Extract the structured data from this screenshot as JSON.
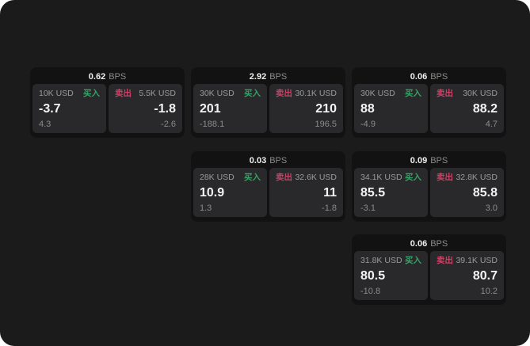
{
  "window": {
    "background": "#ffffff",
    "surface": "#1b1b1c"
  },
  "colors": {
    "card_bg": "#121213",
    "panel_bg": "#29292b",
    "buy_green": "#35a266",
    "sell_red": "#cb4266",
    "text_primary": "#f3f3f3",
    "text_secondary": "#9a9a9a"
  },
  "labels": {
    "buy": "买入",
    "sell": "卖出",
    "bps_unit": "BPS"
  },
  "cards": [
    {
      "bps": "0.62",
      "buy": {
        "amount": "10K USD",
        "value": "-3.7",
        "change": "4.3"
      },
      "sell": {
        "amount": "5.5K USD",
        "value": "-1.8",
        "change": "-2.6"
      }
    },
    {
      "bps": "2.92",
      "buy": {
        "amount": "30K USD",
        "value": "201",
        "change": "-188.1"
      },
      "sell": {
        "amount": "30.1K USD",
        "value": "210",
        "change": "196.5"
      }
    },
    {
      "bps": "0.06",
      "buy": {
        "amount": "30K USD",
        "value": "88",
        "change": "-4.9"
      },
      "sell": {
        "amount": "30K USD",
        "value": "88.2",
        "change": "4.7"
      }
    },
    {
      "bps": "0.03",
      "buy": {
        "amount": "28K USD",
        "value": "10.9",
        "change": "1.3"
      },
      "sell": {
        "amount": "32.6K USD",
        "value": "11",
        "change": "-1.8"
      }
    },
    {
      "bps": "0.09",
      "buy": {
        "amount": "34.1K USD",
        "value": "85.5",
        "change": "-3.1"
      },
      "sell": {
        "amount": "32.8K USD",
        "value": "85.8",
        "change": "3.0"
      }
    },
    {
      "bps": "0.06",
      "buy": {
        "amount": "31.8K USD",
        "value": "80.5",
        "change": "-10.8"
      },
      "sell": {
        "amount": "39.1K USD",
        "value": "80.7",
        "change": "10.2"
      }
    }
  ]
}
